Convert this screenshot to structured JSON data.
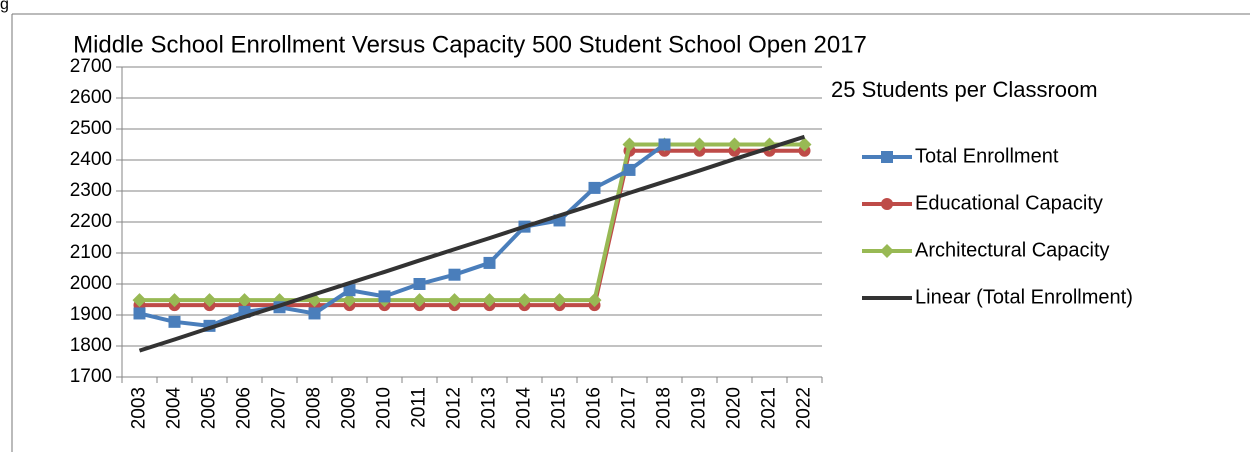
{
  "fragment": "g",
  "chart_data": {
    "type": "line",
    "title": "Middle School Enrollment Versus Capacity 500 Student School Open 2017",
    "annotation": "25 Students per Classroom",
    "categories": [
      "2003",
      "2004",
      "2005",
      "2006",
      "2007",
      "2008",
      "2009",
      "2010",
      "2011",
      "2012",
      "2013",
      "2014",
      "2015",
      "2016",
      "2017",
      "2018",
      "2019",
      "2020",
      "2021",
      "2022"
    ],
    "series": [
      {
        "name": "Total Enrollment",
        "color": "#4a7ebb",
        "marker": "square",
        "values": [
          1905,
          1878,
          1865,
          1910,
          1925,
          1905,
          1980,
          1960,
          2000,
          2030,
          2068,
          2185,
          2205,
          2310,
          2368,
          2450,
          null,
          null,
          null,
          null
        ]
      },
      {
        "name": "Educational Capacity",
        "color": "#be4b48",
        "marker": "circle",
        "values": [
          1932,
          1932,
          1932,
          1932,
          1932,
          1932,
          1932,
          1932,
          1932,
          1932,
          1932,
          1932,
          1932,
          1932,
          2430,
          2430,
          2430,
          2430,
          2430,
          2430
        ]
      },
      {
        "name": "Architectural Capacity",
        "color": "#98b954",
        "marker": "diamond",
        "values": [
          1948,
          1948,
          1948,
          1948,
          1948,
          1948,
          1948,
          1948,
          1948,
          1948,
          1948,
          1948,
          1948,
          1948,
          2450,
          2450,
          2450,
          2450,
          2450,
          2450
        ]
      },
      {
        "name": "Linear (Total Enrollment)",
        "color": "#333333",
        "marker": "none",
        "values": [
          1785,
          1821,
          1858,
          1894,
          1930,
          1967,
          2003,
          2039,
          2076,
          2112,
          2148,
          2185,
          2221,
          2257,
          2294,
          2330,
          2366,
          2403,
          2439,
          2475
        ]
      }
    ],
    "ylim": [
      1700,
      2700
    ],
    "yticks": [
      1700,
      1800,
      1900,
      2000,
      2100,
      2200,
      2300,
      2400,
      2500,
      2600,
      2700
    ],
    "grid": true,
    "legend": "right"
  }
}
